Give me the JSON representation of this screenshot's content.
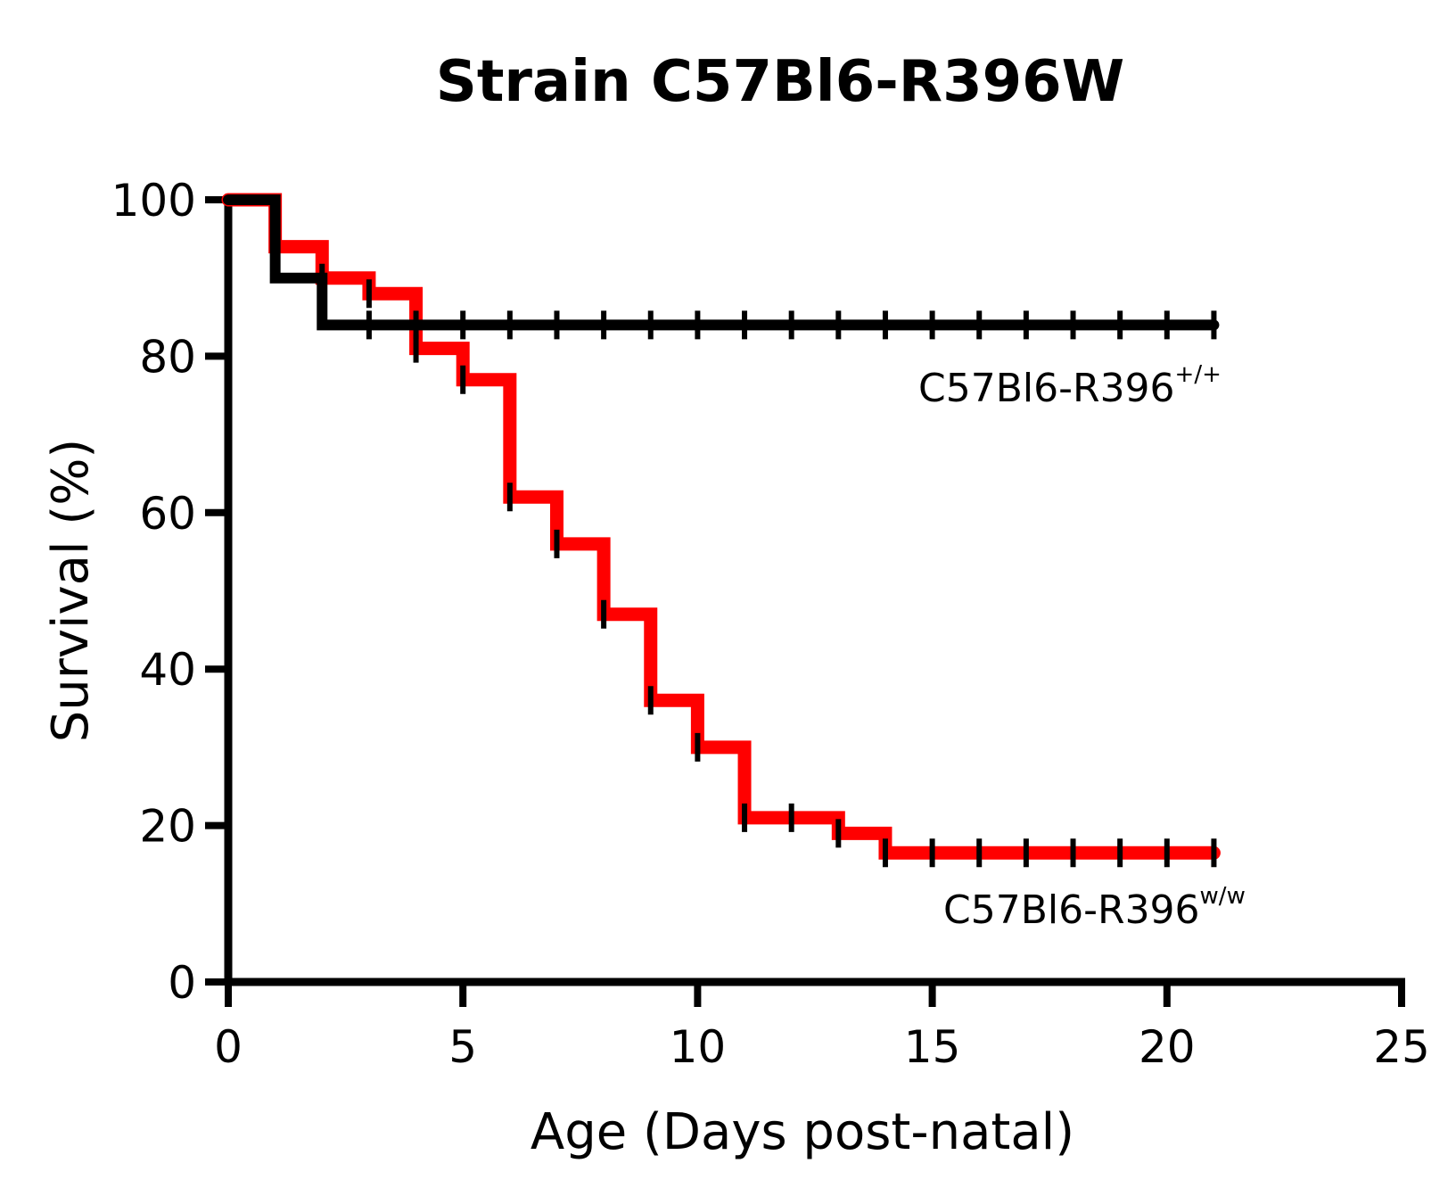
{
  "chart_data": {
    "type": "line",
    "subtype": "kaplan-meier-step",
    "title": "Strain C57Bl6-R396W",
    "xlabel": "Age (Days post-natal)",
    "ylabel": "Survival (%)",
    "xlim": [
      0,
      25
    ],
    "ylim": [
      0,
      100
    ],
    "xticks": [
      0,
      5,
      10,
      15,
      20,
      25
    ],
    "yticks": [
      0,
      20,
      40,
      60,
      80,
      100
    ],
    "series": [
      {
        "name": "C57Bl6-R396+/+",
        "label_base": "C57Bl6-R396",
        "label_sup": "+/+",
        "color": "#000000",
        "steps": [
          {
            "x": 0,
            "y": 100
          },
          {
            "x": 1,
            "y": 90
          },
          {
            "x": 2,
            "y": 84
          },
          {
            "x": 21,
            "y": 84
          }
        ],
        "censor_x": [
          3,
          4,
          5,
          6,
          7,
          8,
          9,
          10,
          11,
          12,
          13,
          14,
          15,
          16,
          17,
          18,
          19,
          20,
          21
        ]
      },
      {
        "name": "C57Bl6-R396w/w",
        "label_base": "C57Bl6-R396",
        "label_sup": "w/w",
        "color": "#ff0000",
        "steps": [
          {
            "x": 0,
            "y": 100
          },
          {
            "x": 1,
            "y": 94
          },
          {
            "x": 2,
            "y": 90
          },
          {
            "x": 3,
            "y": 88
          },
          {
            "x": 4,
            "y": 81
          },
          {
            "x": 5,
            "y": 77
          },
          {
            "x": 6,
            "y": 62
          },
          {
            "x": 7,
            "y": 56
          },
          {
            "x": 8,
            "y": 47
          },
          {
            "x": 9,
            "y": 36
          },
          {
            "x": 10,
            "y": 30
          },
          {
            "x": 11,
            "y": 21
          },
          {
            "x": 13,
            "y": 19
          },
          {
            "x": 14,
            "y": 16.5
          },
          {
            "x": 21,
            "y": 16.5
          }
        ],
        "censor_x": [
          1,
          2,
          3,
          4,
          5,
          6,
          7,
          8,
          9,
          10,
          11,
          12,
          13,
          14,
          15,
          16,
          17,
          18,
          19,
          20,
          21
        ]
      }
    ]
  }
}
